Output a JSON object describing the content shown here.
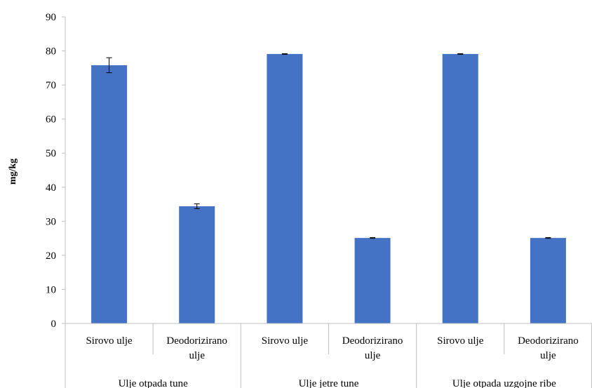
{
  "chart_data": {
    "type": "bar",
    "title": "",
    "xlabel": "",
    "ylabel": "mg/kg",
    "ylim": [
      0,
      90
    ],
    "yticks": [
      0,
      10,
      20,
      30,
      40,
      50,
      60,
      70,
      80,
      90
    ],
    "grid": false,
    "legend": "none",
    "bar_color": "#4472C4",
    "groups": [
      {
        "label": "Ulje otpada tune",
        "categories": [
          "Sirovo ulje",
          "Deodorizirano ulje"
        ]
      },
      {
        "label": "Ulje jetre tune",
        "categories": [
          "Sirovo ulje",
          "Deodorizirano ulje"
        ]
      },
      {
        "label": "Ulje otpada uzgojne ribe",
        "categories": [
          "Sirovo ulje",
          "Deodorizirano ulje"
        ]
      }
    ],
    "values": [
      75.8,
      34.4,
      79.1,
      25.1,
      79.1,
      25.1
    ],
    "errors": [
      2.2,
      0.7,
      0.1,
      0.1,
      0.1,
      0.1
    ]
  }
}
